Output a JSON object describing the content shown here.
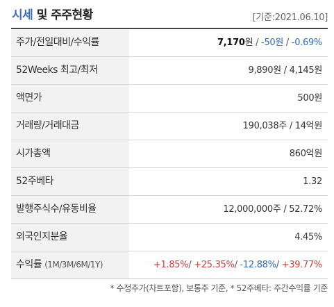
{
  "header": {
    "title_part1": "시세",
    "title_part2": "및 주주현황",
    "base_date": "[기준:2021.06.10]"
  },
  "rows": [
    {
      "label": "주가/전일대비/수익률",
      "price": "7,170",
      "price_unit": "원",
      "sep1": " / ",
      "change": "-50원",
      "sep2": " / ",
      "rate": "-0.69%"
    },
    {
      "label": "52Weeks 최고/최저",
      "value": "9,890원 / 4,145원"
    },
    {
      "label": "액면가",
      "value": "500원"
    },
    {
      "label": "거래량/거래대금",
      "value": "190,038주 / 14억원"
    },
    {
      "label": "시가총액",
      "value": "860억원"
    },
    {
      "label": "52주베타",
      "value": "1.32"
    },
    {
      "label": "발행주식수/유동비율",
      "value": "12,000,000주 / 52.72%"
    },
    {
      "label": "외국인지분율",
      "value": "4.45%"
    },
    {
      "label_main": "수익률",
      "label_sub": "(1M/3M/6M/1Y)",
      "r1": "+1.85%",
      "r2": "+25.35%",
      "r3": "-12.88%",
      "r4": "+39.77%",
      "slash": "/ "
    }
  ],
  "footnote": "* 수정주가(차트포함), 보통주 기준, * 52주베타: 주간수익률 기준",
  "colors": {
    "accent_blue": "#3b6fc4",
    "negative": "#2f6cc9",
    "positive": "#d63a3a",
    "label_bg": "#f2f2f2"
  }
}
